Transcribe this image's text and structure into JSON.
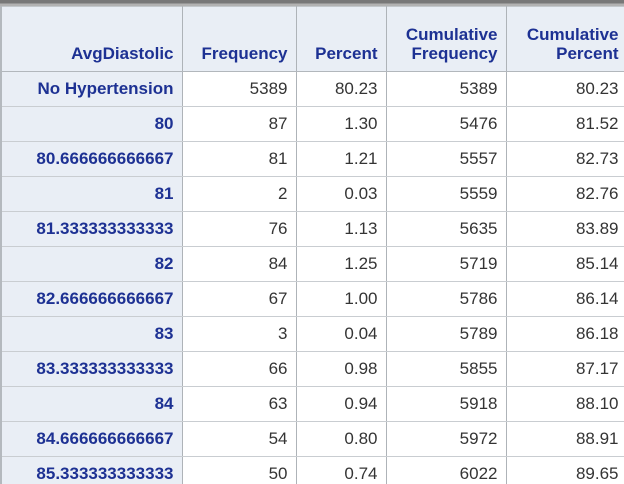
{
  "colors": {
    "header_background": "#e9eef5",
    "header_text": "#1d3193",
    "data_text": "#343434",
    "column_border": "#aeb3b8",
    "row_border": "#c9cdd1",
    "top_strip": "#787878"
  },
  "table": {
    "header": {
      "col1": "AvgDiastolic",
      "col2": "Frequency",
      "col3": "Percent",
      "col4_line1": "Cumulative",
      "col4_line2": "Frequency",
      "col5_line1": "Cumulative",
      "col5_line2": "Percent"
    },
    "rows": [
      {
        "value": "No Hypertension",
        "frequency": "5389",
        "percent": "80.23",
        "cum_frequency": "5389",
        "cum_percent": "80.23"
      },
      {
        "value": "80",
        "frequency": "87",
        "percent": "1.30",
        "cum_frequency": "5476",
        "cum_percent": "81.52"
      },
      {
        "value": "80.666666666667",
        "frequency": "81",
        "percent": "1.21",
        "cum_frequency": "5557",
        "cum_percent": "82.73"
      },
      {
        "value": "81",
        "frequency": "2",
        "percent": "0.03",
        "cum_frequency": "5559",
        "cum_percent": "82.76"
      },
      {
        "value": "81.333333333333",
        "frequency": "76",
        "percent": "1.13",
        "cum_frequency": "5635",
        "cum_percent": "83.89"
      },
      {
        "value": "82",
        "frequency": "84",
        "percent": "1.25",
        "cum_frequency": "5719",
        "cum_percent": "85.14"
      },
      {
        "value": "82.666666666667",
        "frequency": "67",
        "percent": "1.00",
        "cum_frequency": "5786",
        "cum_percent": "86.14"
      },
      {
        "value": "83",
        "frequency": "3",
        "percent": "0.04",
        "cum_frequency": "5789",
        "cum_percent": "86.18"
      },
      {
        "value": "83.333333333333",
        "frequency": "66",
        "percent": "0.98",
        "cum_frequency": "5855",
        "cum_percent": "87.17"
      },
      {
        "value": "84",
        "frequency": "63",
        "percent": "0.94",
        "cum_frequency": "5918",
        "cum_percent": "88.10"
      },
      {
        "value": "84.666666666667",
        "frequency": "54",
        "percent": "0.80",
        "cum_frequency": "5972",
        "cum_percent": "88.91"
      },
      {
        "value": "85.333333333333",
        "frequency": "50",
        "percent": "0.74",
        "cum_frequency": "6022",
        "cum_percent": "89.65"
      }
    ]
  }
}
